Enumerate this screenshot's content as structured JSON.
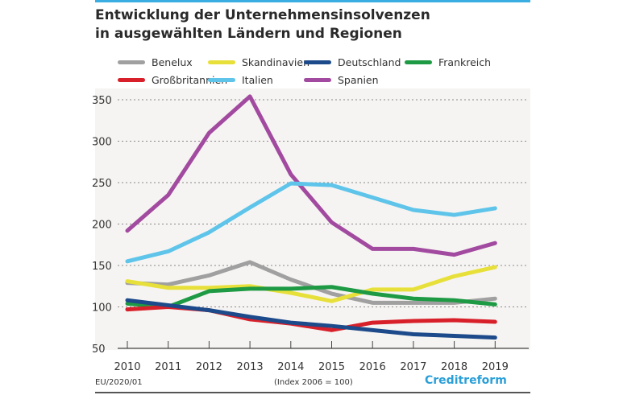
{
  "chart_data": {
    "type": "line",
    "title": "Entwicklung der Unternehmensinsolvenzen in ausgewählten Ländern und Regionen",
    "title_lines": [
      "Entwicklung der Unternehmensinsolvenzen",
      "in ausgewählten Ländern und Regionen"
    ],
    "categories": [
      "2010",
      "2011",
      "2012",
      "2013",
      "2014",
      "2015",
      "2016",
      "2017",
      "2018",
      "2019"
    ],
    "ylim": [
      50,
      350
    ],
    "yticks": [
      50,
      100,
      150,
      200,
      250,
      300,
      350
    ],
    "grid": true,
    "legend_position": "top",
    "series": [
      {
        "name": "Benelux",
        "color": "#a0a0a0",
        "values": [
          129,
          127,
          138,
          154,
          133,
          116,
          105,
          105,
          105,
          110
        ]
      },
      {
        "name": "Skandinavien",
        "color": "#e8e03a",
        "values": [
          131,
          123,
          123,
          125,
          117,
          107,
          121,
          121,
          137,
          148
        ]
      },
      {
        "name": "Deutschland",
        "color": "#1d4a8a",
        "values": [
          108,
          102,
          96,
          88,
          81,
          77,
          72,
          67,
          65,
          63
        ]
      },
      {
        "name": "Frankreich",
        "color": "#1e9a44",
        "values": [
          104,
          100,
          119,
          122,
          122,
          124,
          116,
          110,
          108,
          103
        ]
      },
      {
        "name": "Großbritannien",
        "color": "#d8202a",
        "values": [
          97,
          100,
          96,
          85,
          80,
          72,
          81,
          83,
          84,
          82
        ]
      },
      {
        "name": "Italien",
        "color": "#5ec4ea",
        "values": [
          155,
          167,
          190,
          220,
          249,
          247,
          232,
          217,
          211,
          219
        ]
      },
      {
        "name": "Spanien",
        "color": "#a24aa0",
        "values": [
          192,
          235,
          310,
          354,
          260,
          202,
          170,
          170,
          163,
          177
        ]
      }
    ]
  },
  "footer": {
    "code": "EU/2020/01",
    "note": "(Index 2006 = 100)",
    "logo": "Creditreform"
  }
}
